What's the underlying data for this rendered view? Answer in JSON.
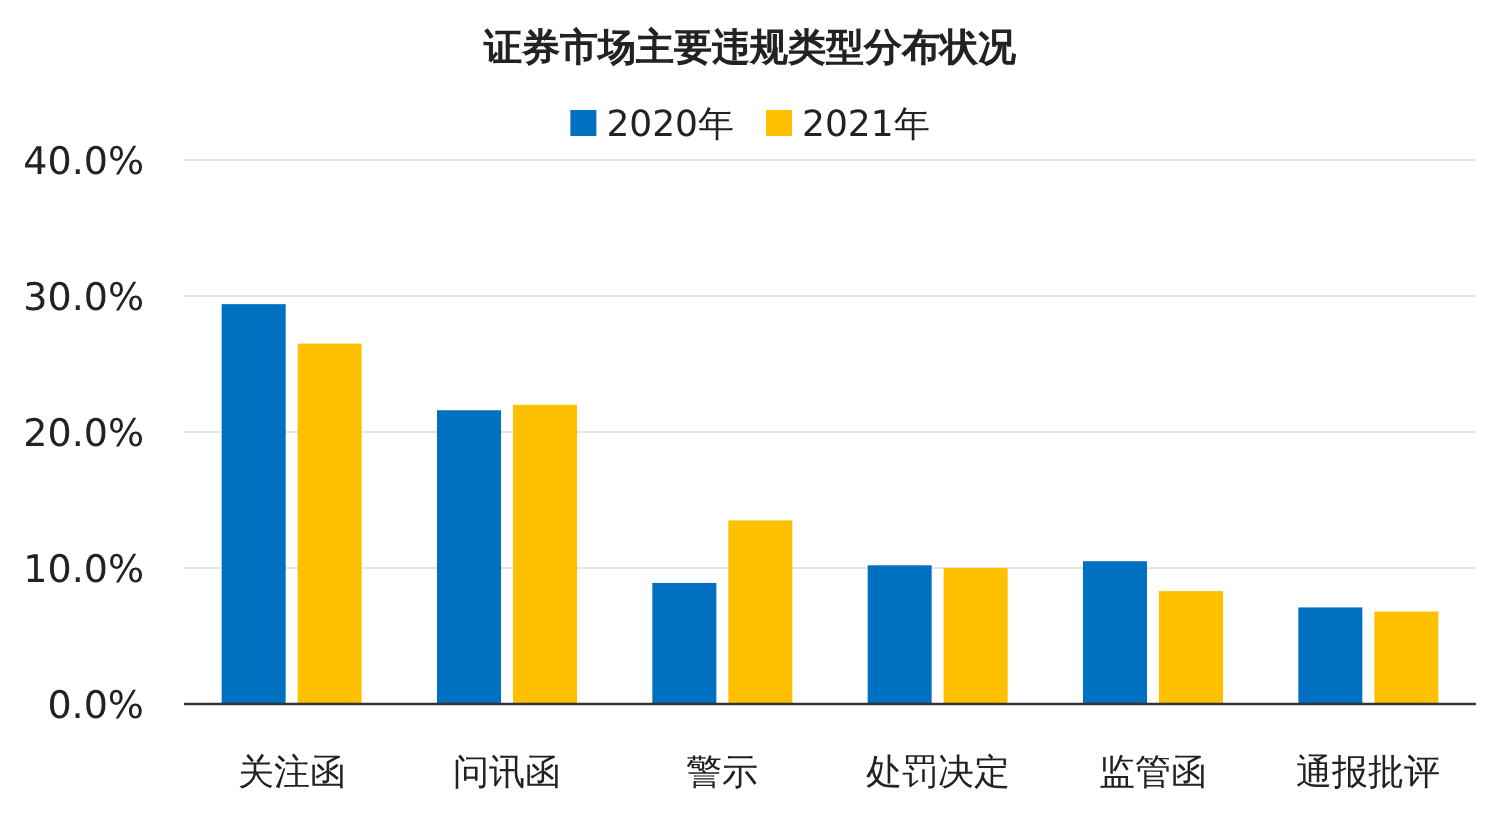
{
  "chart_data": {
    "type": "bar",
    "title": "证券市场主要违规类型分布状况",
    "categories": [
      "关注函",
      "问讯函",
      "警示",
      "处罚决定",
      "监管函",
      "通报批评"
    ],
    "series": [
      {
        "name": "2020年",
        "color": "#0070c0",
        "values": [
          29.4,
          21.6,
          8.9,
          10.2,
          10.5,
          7.1
        ]
      },
      {
        "name": "2021年",
        "color": "#ffc000",
        "values": [
          26.5,
          22.0,
          13.5,
          10.0,
          8.3,
          6.8
        ]
      }
    ],
    "ylim": [
      0,
      40
    ],
    "yticks": [
      {
        "value": 0,
        "label": "0.0%"
      },
      {
        "value": 10,
        "label": "10.0%"
      },
      {
        "value": 20,
        "label": "20.0%"
      },
      {
        "value": 30,
        "label": "30.0%"
      },
      {
        "value": 40,
        "label": "40.0%"
      }
    ],
    "grid": "y",
    "legend": "top"
  }
}
